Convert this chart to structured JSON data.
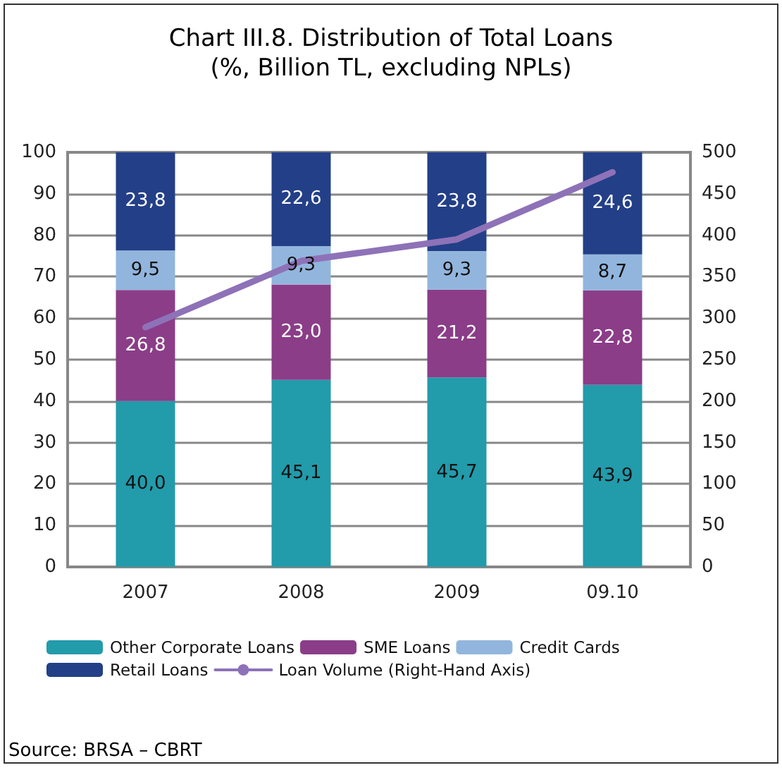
{
  "chart_data": {
    "type": "bar",
    "title": "Chart III.8. Distribution of Total Loans",
    "subtitle": "(%, Billion TL, excluding NPLs)",
    "categories": [
      "2007",
      "2008",
      "2009",
      "09.10"
    ],
    "stacked": true,
    "series": [
      {
        "name": "Other Corporate Loans",
        "color": "#229bab",
        "values": [
          40.0,
          45.1,
          45.7,
          43.9
        ],
        "value_labels": [
          "40,0",
          "45,1",
          "45,7",
          "43,9"
        ]
      },
      {
        "name": "SME Loans",
        "color": "#8b3d88",
        "values": [
          26.8,
          23.0,
          21.2,
          22.8
        ],
        "value_labels": [
          "26,8",
          "23,0",
          "21,2",
          "22,8"
        ]
      },
      {
        "name": "Credit Cards",
        "color": "#92b5dd",
        "values": [
          9.5,
          9.3,
          9.3,
          8.7
        ],
        "value_labels": [
          "9,5",
          "9,3",
          "9,3",
          "8,7"
        ]
      },
      {
        "name": "Retail Loans",
        "color": "#233f87",
        "values": [
          23.8,
          22.6,
          23.8,
          24.6
        ],
        "value_labels": [
          "23,8",
          "22,6",
          "23,8",
          "24,6"
        ]
      },
      {
        "name": "Loan Volume (Right-Hand Axis)",
        "type": "line",
        "axis": "y2",
        "color": "#8e72b8",
        "values": [
          289,
          369,
          395,
          476
        ]
      }
    ],
    "ylim": [
      0,
      100
    ],
    "yticks": [
      0,
      10,
      20,
      30,
      40,
      50,
      60,
      70,
      80,
      90,
      100
    ],
    "y2lim": [
      0,
      500
    ],
    "y2ticks": [
      0,
      50,
      100,
      150,
      200,
      250,
      300,
      350,
      400,
      450,
      500
    ],
    "grid": "y",
    "legend": "bottom",
    "marker": "none",
    "line_style": "solid",
    "annotations": [
      "Source: BRSA – CBRT"
    ]
  }
}
